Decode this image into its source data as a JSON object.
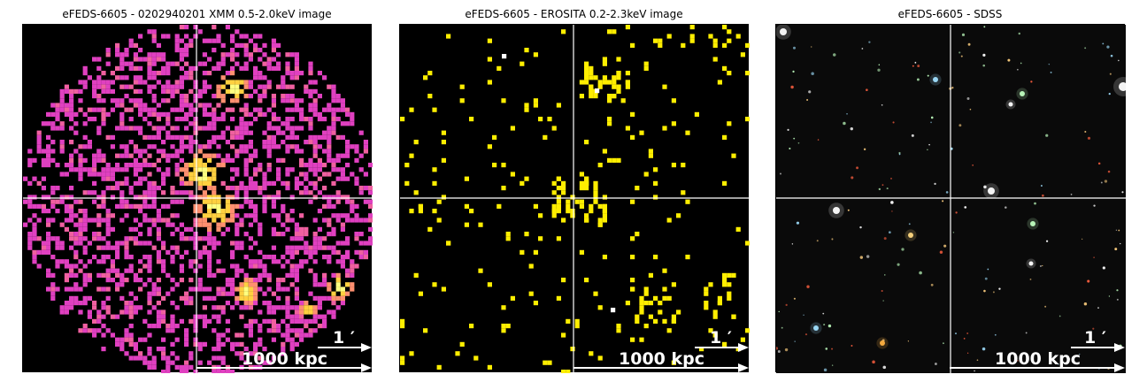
{
  "panels": [
    {
      "title": "eFEDS-6605 - 0202940201 XMM 0.5-2.0keV image",
      "scale_arcmin": "1 ′",
      "scale_kpc": "1000 kpc"
    },
    {
      "title": "eFEDS-6605 -  EROSITA 0.2-2.3keV image",
      "scale_arcmin": "1 ′",
      "scale_kpc": "1000 kpc"
    },
    {
      "title": "eFEDS-6605 - SDSS",
      "scale_arcmin": "1 ′",
      "scale_kpc": "1000 kpc"
    }
  ],
  "colors": {
    "background": "#000000",
    "crosshair": "#ffffff",
    "xmm_pixels": [
      "#e040c0",
      "#f060a0",
      "#ff9070",
      "#ffd040",
      "#ffff80"
    ],
    "erosita_pixels": "#ffee00",
    "sdss_stars": [
      "#ffffff",
      "#ffd080",
      "#a0e0ff",
      "#ff6040",
      "#c0ffc0"
    ]
  }
}
